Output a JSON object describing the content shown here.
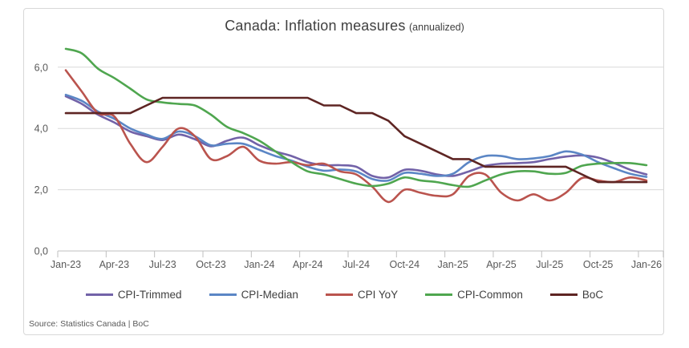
{
  "title": "Canada: Inflation measures",
  "subtitle": "(annualized)",
  "source": "Source: Statistics Canada | BoC",
  "colors": {
    "trimmed": "#7262a8",
    "median": "#5b86c5",
    "yoy": "#ba544e",
    "common": "#4fa64f",
    "boc": "#5e2523",
    "gridline": "#d9d9d9",
    "axis_line": "#bfbfbf",
    "axis_text": "#595959",
    "title_text": "#3f3f3f"
  },
  "legend": [
    {
      "label": "CPI-Trimmed",
      "color": "#7262a8"
    },
    {
      "label": "CPI-Median",
      "color": "#5b86c5"
    },
    {
      "label": "CPI YoY",
      "color": "#ba544e"
    },
    {
      "label": "CPI-Common",
      "color": "#4fa64f"
    },
    {
      "label": "BoC",
      "color": "#5e2523"
    }
  ],
  "chart_data": {
    "type": "line",
    "title": "Canada: Inflation measures (annualized)",
    "x_start": "Jan-23",
    "x_end": "Jan-26",
    "x_interval_months": 1,
    "x_tick_labels": [
      "Jan-23",
      "Apr-23",
      "Jul-23",
      "Oct-23",
      "Jan-24",
      "Apr-24",
      "Jul-24",
      "Oct-24",
      "Jan-25",
      "Apr-25",
      "Jul-25",
      "Oct-25",
      "Jan-26"
    ],
    "y_tick_labels": [
      "0,0",
      "2,0",
      "4,0",
      "6,0"
    ],
    "y_ticks": [
      0,
      2,
      4,
      6
    ],
    "ylim": [
      0,
      6.9
    ],
    "grid": "horizontal",
    "legend_position": "bottom",
    "series": [
      {
        "name": "CPI-Trimmed",
        "color": "#7262a8",
        "smooth": true,
        "values": [
          5.05,
          4.8,
          4.45,
          4.2,
          3.9,
          3.75,
          3.62,
          3.8,
          3.65,
          3.42,
          3.6,
          3.7,
          3.45,
          3.25,
          3.1,
          2.9,
          2.8,
          2.8,
          2.75,
          2.45,
          2.4,
          2.65,
          2.62,
          2.5,
          2.45,
          2.6,
          2.78,
          2.85,
          2.87,
          2.9,
          3.0,
          3.08,
          3.12,
          3.05,
          2.87,
          2.65,
          2.5
        ]
      },
      {
        "name": "CPI-Median",
        "color": "#5b86c5",
        "smooth": true,
        "values": [
          5.1,
          4.9,
          4.55,
          4.32,
          4.0,
          3.8,
          3.66,
          3.9,
          3.75,
          3.45,
          3.5,
          3.5,
          3.3,
          3.1,
          2.95,
          2.75,
          2.62,
          2.66,
          2.6,
          2.35,
          2.3,
          2.55,
          2.52,
          2.45,
          2.52,
          2.9,
          3.1,
          3.1,
          3.0,
          3.02,
          3.1,
          3.25,
          3.15,
          2.9,
          2.7,
          2.52,
          2.42
        ]
      },
      {
        "name": "CPI YoY",
        "color": "#ba544e",
        "smooth": true,
        "values": [
          5.9,
          5.2,
          4.5,
          4.4,
          3.5,
          2.9,
          3.4,
          4.0,
          3.75,
          3.0,
          3.1,
          3.4,
          2.95,
          2.85,
          2.9,
          2.8,
          2.85,
          2.6,
          2.5,
          2.1,
          1.6,
          2.0,
          1.9,
          1.8,
          1.85,
          2.45,
          2.5,
          1.9,
          1.65,
          1.85,
          1.65,
          1.9,
          2.38,
          2.3,
          2.25,
          2.4,
          2.3
        ]
      },
      {
        "name": "CPI-Common",
        "color": "#4fa64f",
        "smooth": true,
        "values": [
          6.6,
          6.45,
          5.95,
          5.65,
          5.3,
          4.95,
          4.85,
          4.8,
          4.75,
          4.45,
          4.05,
          3.85,
          3.6,
          3.25,
          2.9,
          2.6,
          2.5,
          2.35,
          2.2,
          2.12,
          2.2,
          2.4,
          2.3,
          2.25,
          2.15,
          2.1,
          2.3,
          2.5,
          2.6,
          2.6,
          2.52,
          2.55,
          2.78,
          2.85,
          2.87,
          2.87,
          2.8
        ]
      },
      {
        "name": "BoC",
        "color": "#5e2523",
        "smooth": false,
        "values": [
          4.5,
          4.5,
          4.5,
          4.5,
          4.5,
          4.75,
          5.0,
          5.0,
          5.0,
          5.0,
          5.0,
          5.0,
          5.0,
          5.0,
          5.0,
          5.0,
          4.75,
          4.75,
          4.5,
          4.5,
          4.25,
          3.75,
          3.5,
          3.25,
          3.0,
          3.0,
          2.75,
          2.75,
          2.75,
          2.75,
          2.75,
          2.75,
          2.5,
          2.25,
          2.25,
          2.25,
          2.25
        ]
      }
    ]
  }
}
